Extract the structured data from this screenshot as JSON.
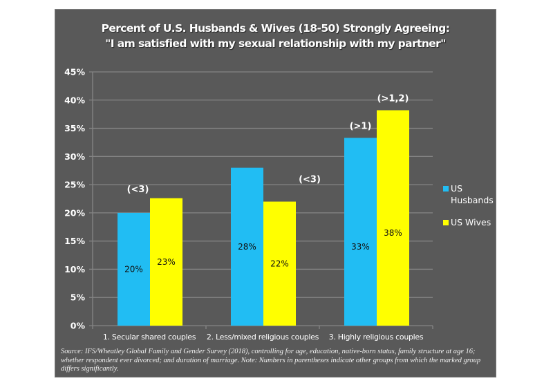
{
  "chart_data": {
    "type": "bar",
    "title": "Percent of U.S. Husbands & Wives (18-50) Strongly Agreeing:",
    "subtitle": "\"I am satisfied with my sexual relationship with my partner\"",
    "xlabel": "",
    "ylabel": "",
    "categories": [
      "1. Secular shared couples",
      "2. Less/mixed religious couples",
      "3. Highly religious couples"
    ],
    "series": [
      {
        "name": "US Husbands",
        "color": "#21BDF3",
        "values": [
          20,
          28,
          33.3
        ],
        "data_labels": [
          "20%",
          "28%",
          "33%"
        ],
        "annotations": [
          "",
          "",
          "(>1)"
        ]
      },
      {
        "name": "US Wives",
        "color": "#FFFF00",
        "values": [
          22.6,
          22,
          38.2
        ],
        "data_labels": [
          "23%",
          "22%",
          "38%"
        ],
        "annotations": [
          "(<3)",
          "(<3)",
          "(>1,2)"
        ]
      }
    ],
    "ylim": [
      0,
      45
    ],
    "yticks": [
      0,
      5,
      10,
      15,
      20,
      25,
      30,
      35,
      40,
      45
    ],
    "ytick_labels": [
      "0%",
      "5%",
      "10%",
      "15%",
      "20%",
      "25%",
      "30%",
      "35%",
      "40%",
      "45%"
    ],
    "grid": true,
    "legend_position": "right",
    "background": "#595959"
  },
  "legend": {
    "items": [
      {
        "line1": "US",
        "line2": "Husbands"
      },
      {
        "line1": "US Wives",
        "line2": ""
      }
    ]
  },
  "source_note": "Source: IFS/Wheatley Global Family and Gender Survey (2018), controlling for age, education, native-born status, family structure at age 16; whether respondent ever divorced; and duration of marriage. Note: Numbers in parentheses indicate other groups from which the marked group differs significantly."
}
